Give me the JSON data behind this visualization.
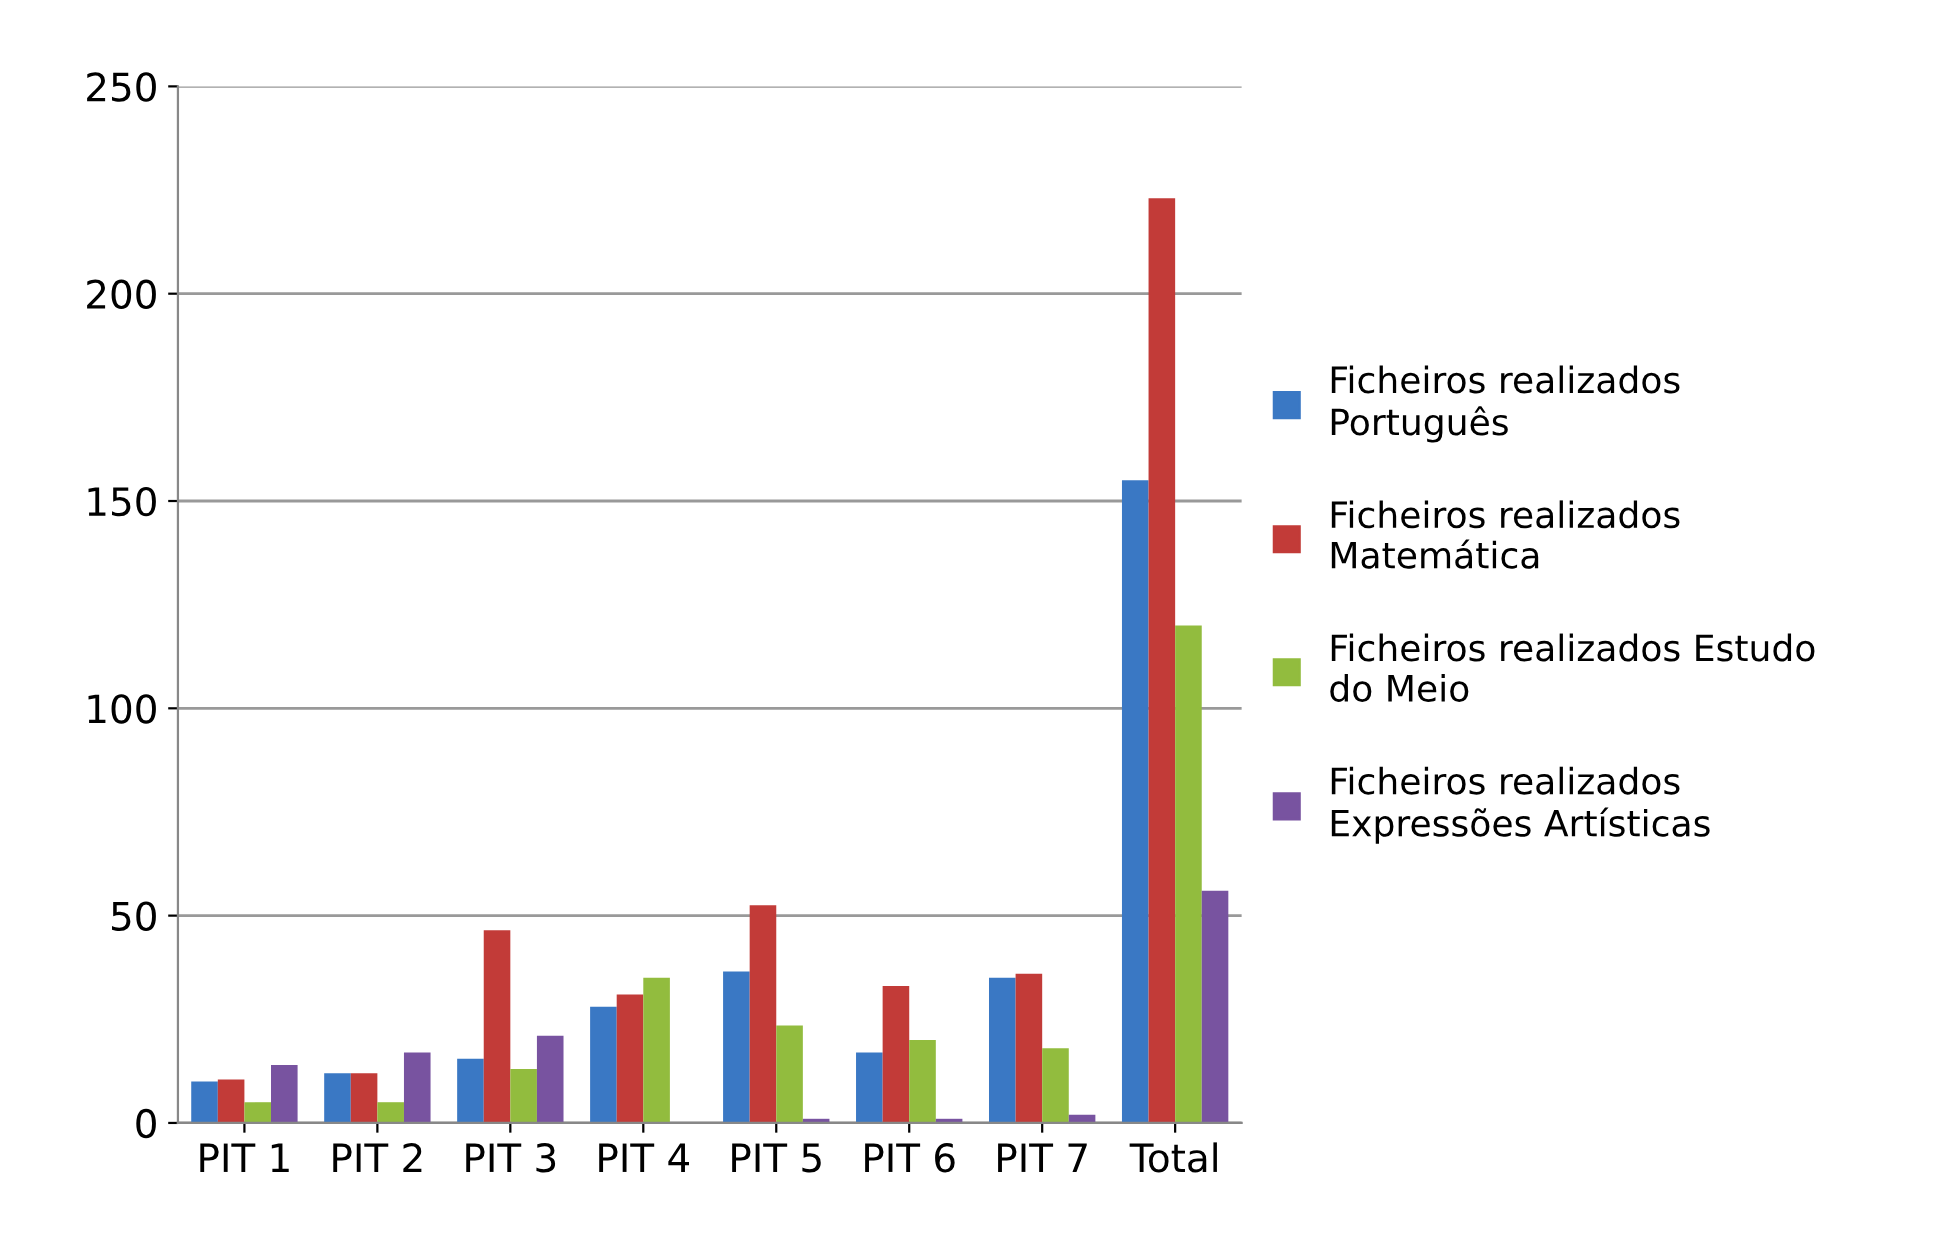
{
  "chart_data": {
    "type": "bar",
    "categories": [
      "PIT 1",
      "PIT 2",
      "PIT 3",
      "PIT 4",
      "PIT 5",
      "PIT 6",
      "PIT 7",
      "Total"
    ],
    "series": [
      {
        "name": "Ficheiros realizados Português",
        "color": "#3a78c4",
        "values": [
          10,
          12,
          15.5,
          28,
          36.5,
          17,
          35,
          155
        ]
      },
      {
        "name": "Ficheiros realizados Matemática",
        "color": "#c23b38",
        "values": [
          10.5,
          12,
          46.5,
          31,
          52.5,
          33,
          36,
          223
        ]
      },
      {
        "name": "Ficheiros realizados Estudo do Meio",
        "color": "#92bc3e",
        "values": [
          5,
          5,
          13,
          35,
          23.5,
          20,
          18,
          120
        ]
      },
      {
        "name": "Ficheiros realizados Expressões Artísticas",
        "color": "#7853a0",
        "values": [
          14,
          17,
          21,
          0,
          1,
          1,
          2,
          56
        ]
      }
    ],
    "ylim": [
      0,
      250
    ],
    "yticks": [
      0,
      50,
      100,
      150,
      200,
      250
    ],
    "grid": "y",
    "legend": "right"
  }
}
